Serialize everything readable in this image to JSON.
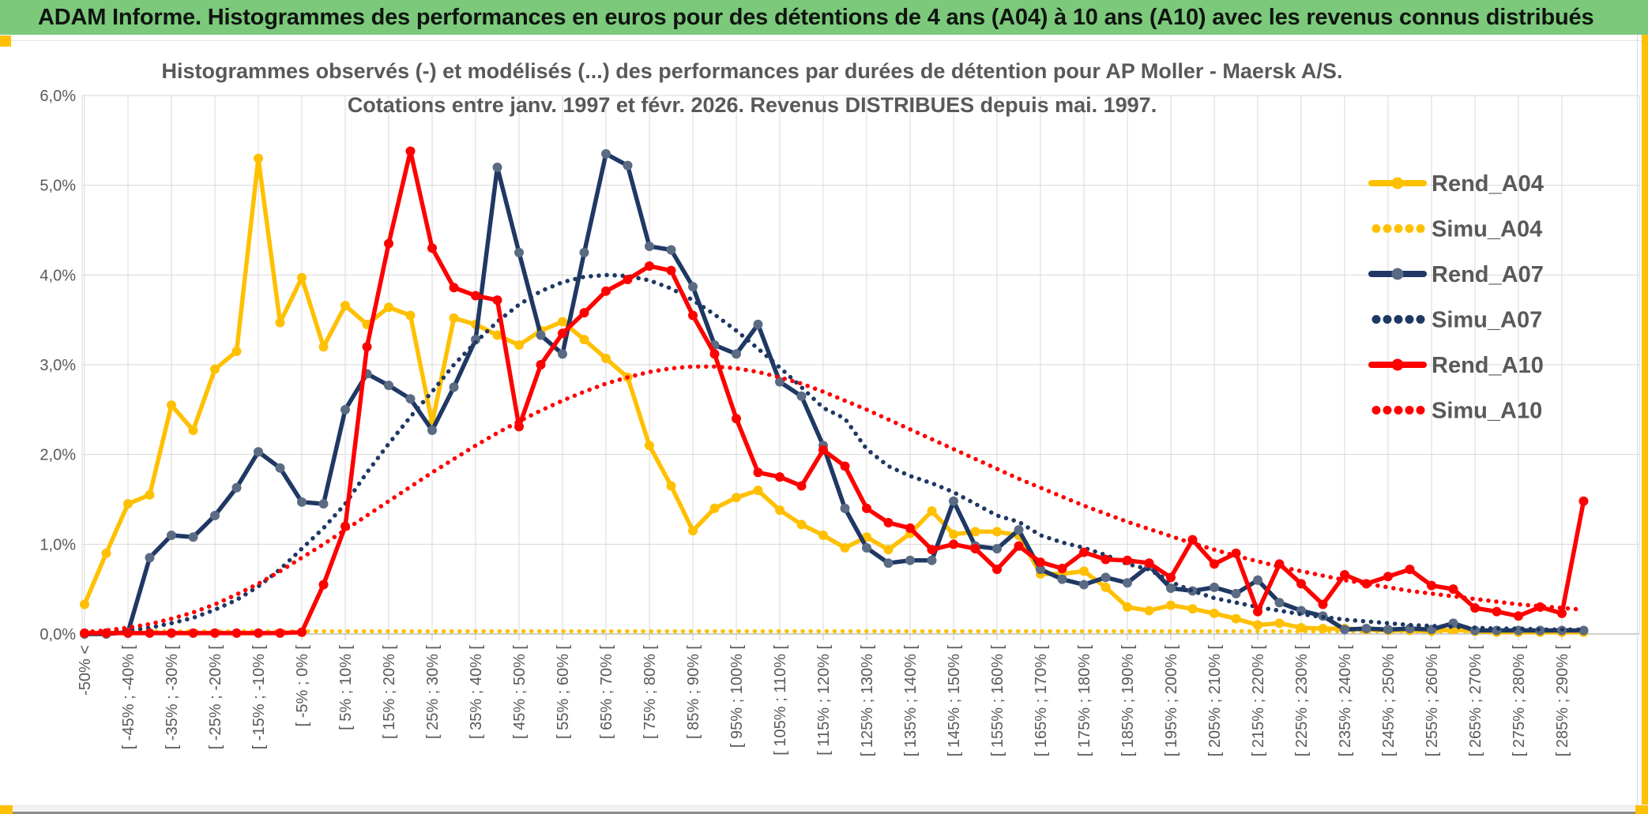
{
  "header": {
    "title": "ADAM Informe. Histogrammes des performances en euros pour des détentions de 4 ans (A04) à 10 ans (A10) avec les revenus connus distribués",
    "bg_color": "#7CC97C",
    "accent_color": "#FFC000"
  },
  "chart_data": {
    "type": "line",
    "title_line1": "Histogrammes observés (-) et modélisés (...) des performances par durées de détention pour AP Moller - Maersk A/S.",
    "title_line2": "Cotations entre janv. 1997 et févr. 2026. Revenus DISTRIBUES depuis mai. 1997.",
    "y_tick_labels": [
      "0,0%",
      "1,0%",
      "2,0%",
      "3,0%",
      "4,0%",
      "5,0%",
      "6,0%"
    ],
    "ylim": [
      0,
      6
    ],
    "grid": true,
    "grid_color": "#D9D9D9",
    "axis_color": "#BFBFBF",
    "text_color": "#595959",
    "legend_position": "right",
    "n_points": 70,
    "label_every": 2,
    "x_tick_labels": [
      "-50% <",
      "[ -45% ; -40% [",
      "[ -35% ; -30% [",
      "[ -25% ; -20% [",
      "[ -15% ; -10% [",
      "[ -5% ; 0% [",
      "[ 5% ; 10% [",
      "[ 15% ; 20% [",
      "[ 25% ; 30% [",
      "[ 35% ; 40% [",
      "[ 45% ; 50% [",
      "[ 55% ; 60% [",
      "[ 65% ; 70% [",
      "[ 75% ; 80% [",
      "[ 85% ; 90% [",
      "[ 95% ; 100% [",
      "[ 105% ; 110% [",
      "[ 115% ; 120% [",
      "[ 125% ; 130% [",
      "[ 135% ; 140% [",
      "[ 145% ; 150% [",
      "[ 155% ; 160% [",
      "[ 165% ; 170% [",
      "[ 175% ; 180% [",
      "[ 185% ; 190% [",
      "[ 195% ; 200% [",
      "[ 205% ; 210% [",
      "[ 215% ; 220% [",
      "[ 225% ; 230% [",
      "[ 235% ; 240% [",
      "[ 245% ; 250% [",
      "[ 255% ; 260% [",
      "[ 265% ; 270% [",
      "[ 275% ; 280% [",
      "[ 285% ; 290% ["
    ],
    "series": [
      {
        "name": "Rend_A04",
        "color": "#FFC000",
        "style": "solid",
        "marker": true,
        "values": [
          0.33,
          0.9,
          1.45,
          1.55,
          2.55,
          2.27,
          2.95,
          3.15,
          5.3,
          3.47,
          3.97,
          3.2,
          3.66,
          3.45,
          3.64,
          3.55,
          2.35,
          3.52,
          3.45,
          3.33,
          3.22,
          3.38,
          3.48,
          3.28,
          3.07,
          2.86,
          2.1,
          1.65,
          1.15,
          1.4,
          1.52,
          1.6,
          1.38,
          1.22,
          1.1,
          0.96,
          1.08,
          0.94,
          1.12,
          1.37,
          1.11,
          1.14,
          1.14,
          1.1,
          0.67,
          0.67,
          0.7,
          0.52,
          0.3,
          0.26,
          0.32,
          0.28,
          0.23,
          0.17,
          0.1,
          0.12,
          0.07,
          0.06,
          0.06,
          0.05,
          0.04,
          0.04,
          0.03,
          0.05,
          0.03,
          0.02,
          0.02,
          0.02,
          0.02,
          0.02
        ]
      },
      {
        "name": "Simu_A04",
        "color": "#FFC000",
        "style": "dotted",
        "marker": false,
        "values": [
          0.03,
          0.03,
          0.03,
          0.03,
          0.03,
          0.03,
          0.03,
          0.03,
          0.03,
          0.03,
          0.03,
          0.03,
          0.03,
          0.03,
          0.03,
          0.03,
          0.03,
          0.03,
          0.03,
          0.03,
          0.03,
          0.03,
          0.03,
          0.03,
          0.03,
          0.03,
          0.03,
          0.03,
          0.03,
          0.03,
          0.03,
          0.03,
          0.03,
          0.03,
          0.03,
          0.03,
          0.03,
          0.03,
          0.03,
          0.03,
          0.03,
          0.03,
          0.03,
          0.03,
          0.03,
          0.03,
          0.03,
          0.03,
          0.03,
          0.03,
          0.03,
          0.03,
          0.03,
          0.03,
          0.03,
          0.03,
          0.03,
          0.03,
          0.03,
          0.03,
          0.03,
          0.03,
          0.03,
          0.03,
          0.03,
          0.03,
          0.03,
          0.03,
          0.03,
          0.03
        ]
      },
      {
        "name": "Rend_A07",
        "color": "#1F3864",
        "marker_color": "#5B6B84",
        "style": "solid",
        "marker": true,
        "values": [
          0.0,
          0.0,
          0.02,
          0.85,
          1.1,
          1.08,
          1.32,
          1.63,
          2.03,
          1.85,
          1.47,
          1.45,
          2.5,
          2.9,
          2.77,
          2.62,
          2.27,
          2.75,
          3.28,
          5.2,
          4.25,
          3.33,
          3.12,
          4.25,
          5.35,
          5.22,
          4.32,
          4.28,
          3.87,
          3.22,
          3.12,
          3.45,
          2.81,
          2.65,
          2.1,
          1.4,
          0.96,
          0.79,
          0.82,
          0.82,
          1.48,
          0.98,
          0.95,
          1.16,
          0.72,
          0.61,
          0.55,
          0.63,
          0.57,
          0.76,
          0.51,
          0.48,
          0.52,
          0.45,
          0.6,
          0.35,
          0.26,
          0.2,
          0.05,
          0.06,
          0.05,
          0.06,
          0.05,
          0.12,
          0.04,
          0.04,
          0.04,
          0.04,
          0.04,
          0.04
        ]
      },
      {
        "name": "Simu_A07",
        "color": "#1F3864",
        "style": "dotted",
        "marker": false,
        "values": [
          0.01,
          0.02,
          0.04,
          0.07,
          0.12,
          0.18,
          0.27,
          0.38,
          0.53,
          0.72,
          0.95,
          1.18,
          1.45,
          1.8,
          2.12,
          2.42,
          2.7,
          3.0,
          3.25,
          3.48,
          3.67,
          3.82,
          3.92,
          3.98,
          4.0,
          3.99,
          3.94,
          3.85,
          3.72,
          3.56,
          3.38,
          3.18,
          2.97,
          2.75,
          2.52,
          2.4,
          2.06,
          1.87,
          1.76,
          1.68,
          1.58,
          1.45,
          1.32,
          1.25,
          1.1,
          1.02,
          0.96,
          0.88,
          0.78,
          0.72,
          0.58,
          0.48,
          0.4,
          0.35,
          0.3,
          0.26,
          0.22,
          0.19,
          0.16,
          0.14,
          0.12,
          0.1,
          0.09,
          0.08,
          0.07,
          0.06,
          0.06,
          0.05,
          0.05,
          0.05
        ]
      },
      {
        "name": "Rend_A10",
        "color": "#FF0000",
        "style": "solid",
        "marker": true,
        "values": [
          0.01,
          0.01,
          0.01,
          0.01,
          0.01,
          0.01,
          0.01,
          0.01,
          0.01,
          0.01,
          0.02,
          0.55,
          1.2,
          3.2,
          4.35,
          5.38,
          4.3,
          3.86,
          3.77,
          3.72,
          2.31,
          3.0,
          3.35,
          3.58,
          3.82,
          3.95,
          4.1,
          4.05,
          3.55,
          3.12,
          2.4,
          1.8,
          1.75,
          1.65,
          2.05,
          1.87,
          1.4,
          1.24,
          1.18,
          0.94,
          1.0,
          0.95,
          0.72,
          0.98,
          0.8,
          0.73,
          0.91,
          0.83,
          0.82,
          0.79,
          0.63,
          1.05,
          0.78,
          0.9,
          0.25,
          0.78,
          0.56,
          0.33,
          0.66,
          0.56,
          0.64,
          0.72,
          0.54,
          0.5,
          0.29,
          0.25,
          0.2,
          0.3,
          0.23,
          1.48
        ]
      },
      {
        "name": "Simu_A10",
        "color": "#FF0000",
        "style": "dotted",
        "marker": false,
        "values": [
          0.02,
          0.04,
          0.07,
          0.11,
          0.17,
          0.24,
          0.33,
          0.44,
          0.56,
          0.7,
          0.85,
          1.0,
          1.16,
          1.32,
          1.48,
          1.64,
          1.8,
          1.95,
          2.1,
          2.24,
          2.37,
          2.49,
          2.6,
          2.7,
          2.79,
          2.86,
          2.92,
          2.96,
          2.98,
          2.98,
          2.96,
          2.92,
          2.86,
          2.79,
          2.7,
          2.6,
          2.5,
          2.39,
          2.28,
          2.17,
          2.06,
          1.95,
          1.84,
          1.73,
          1.63,
          1.53,
          1.43,
          1.34,
          1.25,
          1.17,
          1.09,
          1.01,
          0.94,
          0.87,
          0.81,
          0.75,
          0.7,
          0.65,
          0.6,
          0.56,
          0.52,
          0.48,
          0.45,
          0.42,
          0.39,
          0.36,
          0.33,
          0.31,
          0.29,
          0.27
        ]
      }
    ]
  }
}
